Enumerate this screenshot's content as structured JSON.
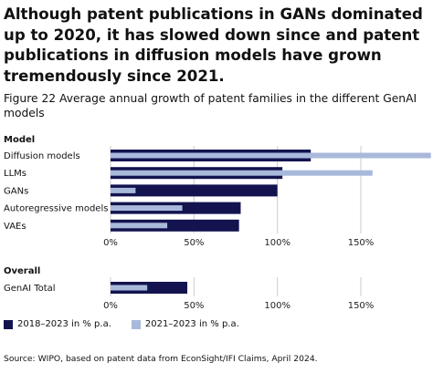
{
  "headline": "Although patent publications in GANs dominated up to 2020, it has slowed down since and patent publications in diffusion models have grown tremendously since 2021.",
  "caption": "Figure 22 Average annual growth of patent families in the different GenAI models",
  "source": "Source: WIPO, based on patent data from EconSight/IFI Claims, April 2024.",
  "colors": {
    "series_2018_2023": "#13134f",
    "series_2021_2023": "#a9b9db",
    "grid": "#cccccc"
  },
  "chart_data": [
    {
      "type": "bar",
      "orientation": "horizontal",
      "section_label": "Model",
      "categories": [
        "Diffusion models",
        "LLMs",
        "GANs",
        "Autoregressive models",
        "VAEs"
      ],
      "series": [
        {
          "name": "2018–2023 in % p.a.",
          "values": [
            120,
            103,
            100,
            78,
            77
          ]
        },
        {
          "name": "2021–2023 in % p.a.",
          "values": [
            192,
            157,
            15,
            43,
            34
          ]
        }
      ],
      "xlim": [
        0,
        190
      ],
      "xticks": [
        "0%",
        "50%",
        "100%",
        "150%"
      ],
      "xtick_values": [
        0,
        50,
        100,
        150
      ]
    },
    {
      "type": "bar",
      "orientation": "horizontal",
      "section_label": "Overall",
      "categories": [
        "GenAI Total"
      ],
      "series": [
        {
          "name": "2018–2023 in % p.a.",
          "values": [
            46
          ]
        },
        {
          "name": "2021–2023 in % p.a.",
          "values": [
            22
          ]
        }
      ],
      "xlim": [
        0,
        190
      ],
      "xticks": [
        "0%",
        "50%",
        "100%",
        "150%"
      ],
      "xtick_values": [
        0,
        50,
        100,
        150
      ]
    }
  ],
  "legend": [
    {
      "label": "2018–2023 in % p.a.",
      "color": "#13134f"
    },
    {
      "label": "2021–2023 in % p.a.",
      "color": "#a9b9db"
    }
  ]
}
